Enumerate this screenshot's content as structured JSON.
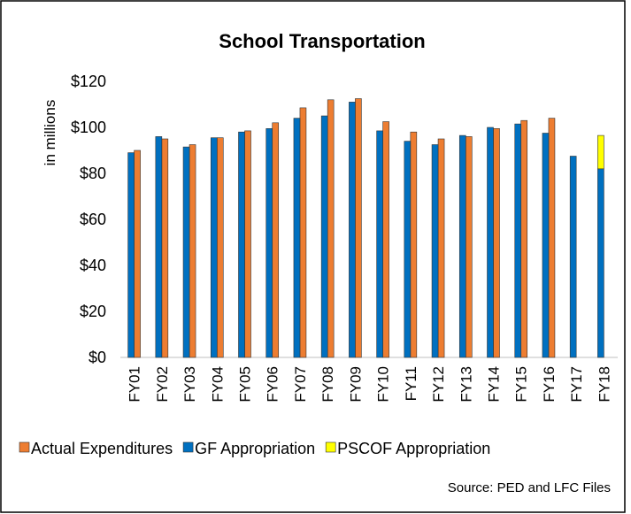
{
  "chart_data": {
    "type": "bar",
    "title": "School Transportation",
    "y_label": "in millions",
    "categories": [
      "FY01",
      "FY02",
      "FY03",
      "FY04",
      "FY05",
      "FY06",
      "FY07",
      "FY08",
      "FY09",
      "FY10",
      "FY11",
      "FY12",
      "FY13",
      "FY14",
      "FY15",
      "FY16",
      "FY17",
      "FY18"
    ],
    "series": [
      {
        "name": "Actual Expenditures",
        "color": "#ed7d31",
        "values": [
          90,
          95,
          92.5,
          95.5,
          98.5,
          102,
          108.5,
          112,
          112.5,
          102.5,
          98,
          95,
          96,
          99.5,
          103,
          104,
          null,
          null
        ]
      },
      {
        "name": "GF Appropriation",
        "color": "#0070c0",
        "values": [
          89,
          96,
          91.5,
          95.5,
          98,
          99.5,
          104,
          105,
          111,
          98.5,
          94,
          92.5,
          96.5,
          100,
          101.5,
          97.5,
          87.5,
          82
        ]
      },
      {
        "name": "PSCOF Appropriation",
        "color": "#ffff00",
        "values": [
          null,
          null,
          null,
          null,
          null,
          null,
          null,
          null,
          null,
          null,
          null,
          null,
          null,
          null,
          null,
          null,
          null,
          14.5
        ]
      }
    ],
    "ylim": [
      0,
      120
    ],
    "yticks": [
      {
        "value": 0,
        "label": "$0"
      },
      {
        "value": 20,
        "label": "$20"
      },
      {
        "value": 40,
        "label": "$40"
      },
      {
        "value": 60,
        "label": "$60"
      },
      {
        "value": 80,
        "label": "$80"
      },
      {
        "value": 100,
        "label": "$100"
      },
      {
        "value": 120,
        "label": "$120"
      }
    ],
    "source": "Source: PED and LFC Files"
  }
}
